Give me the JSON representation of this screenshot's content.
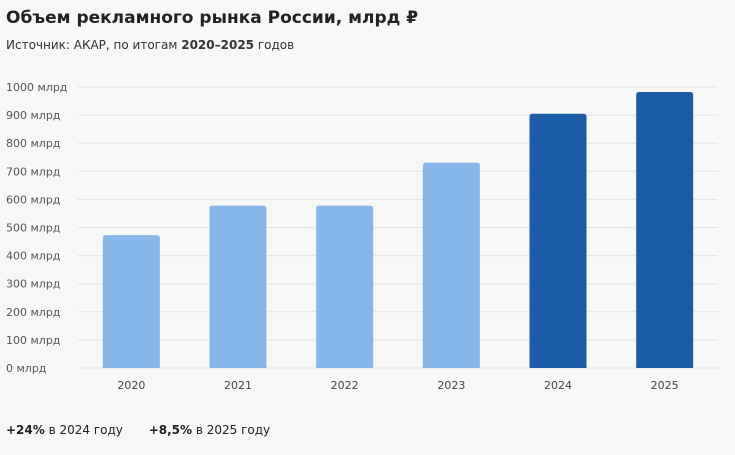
{
  "title": "Объем рекламного рынка России, млрд ₽",
  "subtitle": {
    "prefix": "Источник: АКАР, по итогам ",
    "range": "2020–2025",
    "suffix": " годов"
  },
  "footer": [
    {
      "value": "+24%",
      "text": " в 2024 году"
    },
    {
      "value": "+8,5%",
      "text": " в 2025 году"
    }
  ],
  "colors": {
    "bar_light": "#87b6ea",
    "bar_dark": "#1a5da6",
    "grid": "#e2e2e2",
    "background": "#f7f7f5"
  },
  "chart_data": {
    "type": "bar",
    "title": "Объем рекламного рынка России, млрд ₽",
    "categories": [
      "2020",
      "2021",
      "2022",
      "2023",
      "2024",
      "2025"
    ],
    "values": [
      473,
      578,
      578,
      731,
      905,
      982
    ],
    "highlight": [
      false,
      false,
      false,
      false,
      true,
      true
    ],
    "ylim": [
      0,
      1000
    ],
    "yticks": [
      "0 млрд",
      "100 млрд",
      "200 млрд",
      "300 млрд",
      "400 млрд",
      "500 млрд",
      "600 млрд",
      "700 млрд",
      "800 млрд",
      "900 млрд",
      "1000 млрд"
    ],
    "grid": true,
    "legend": "none"
  }
}
